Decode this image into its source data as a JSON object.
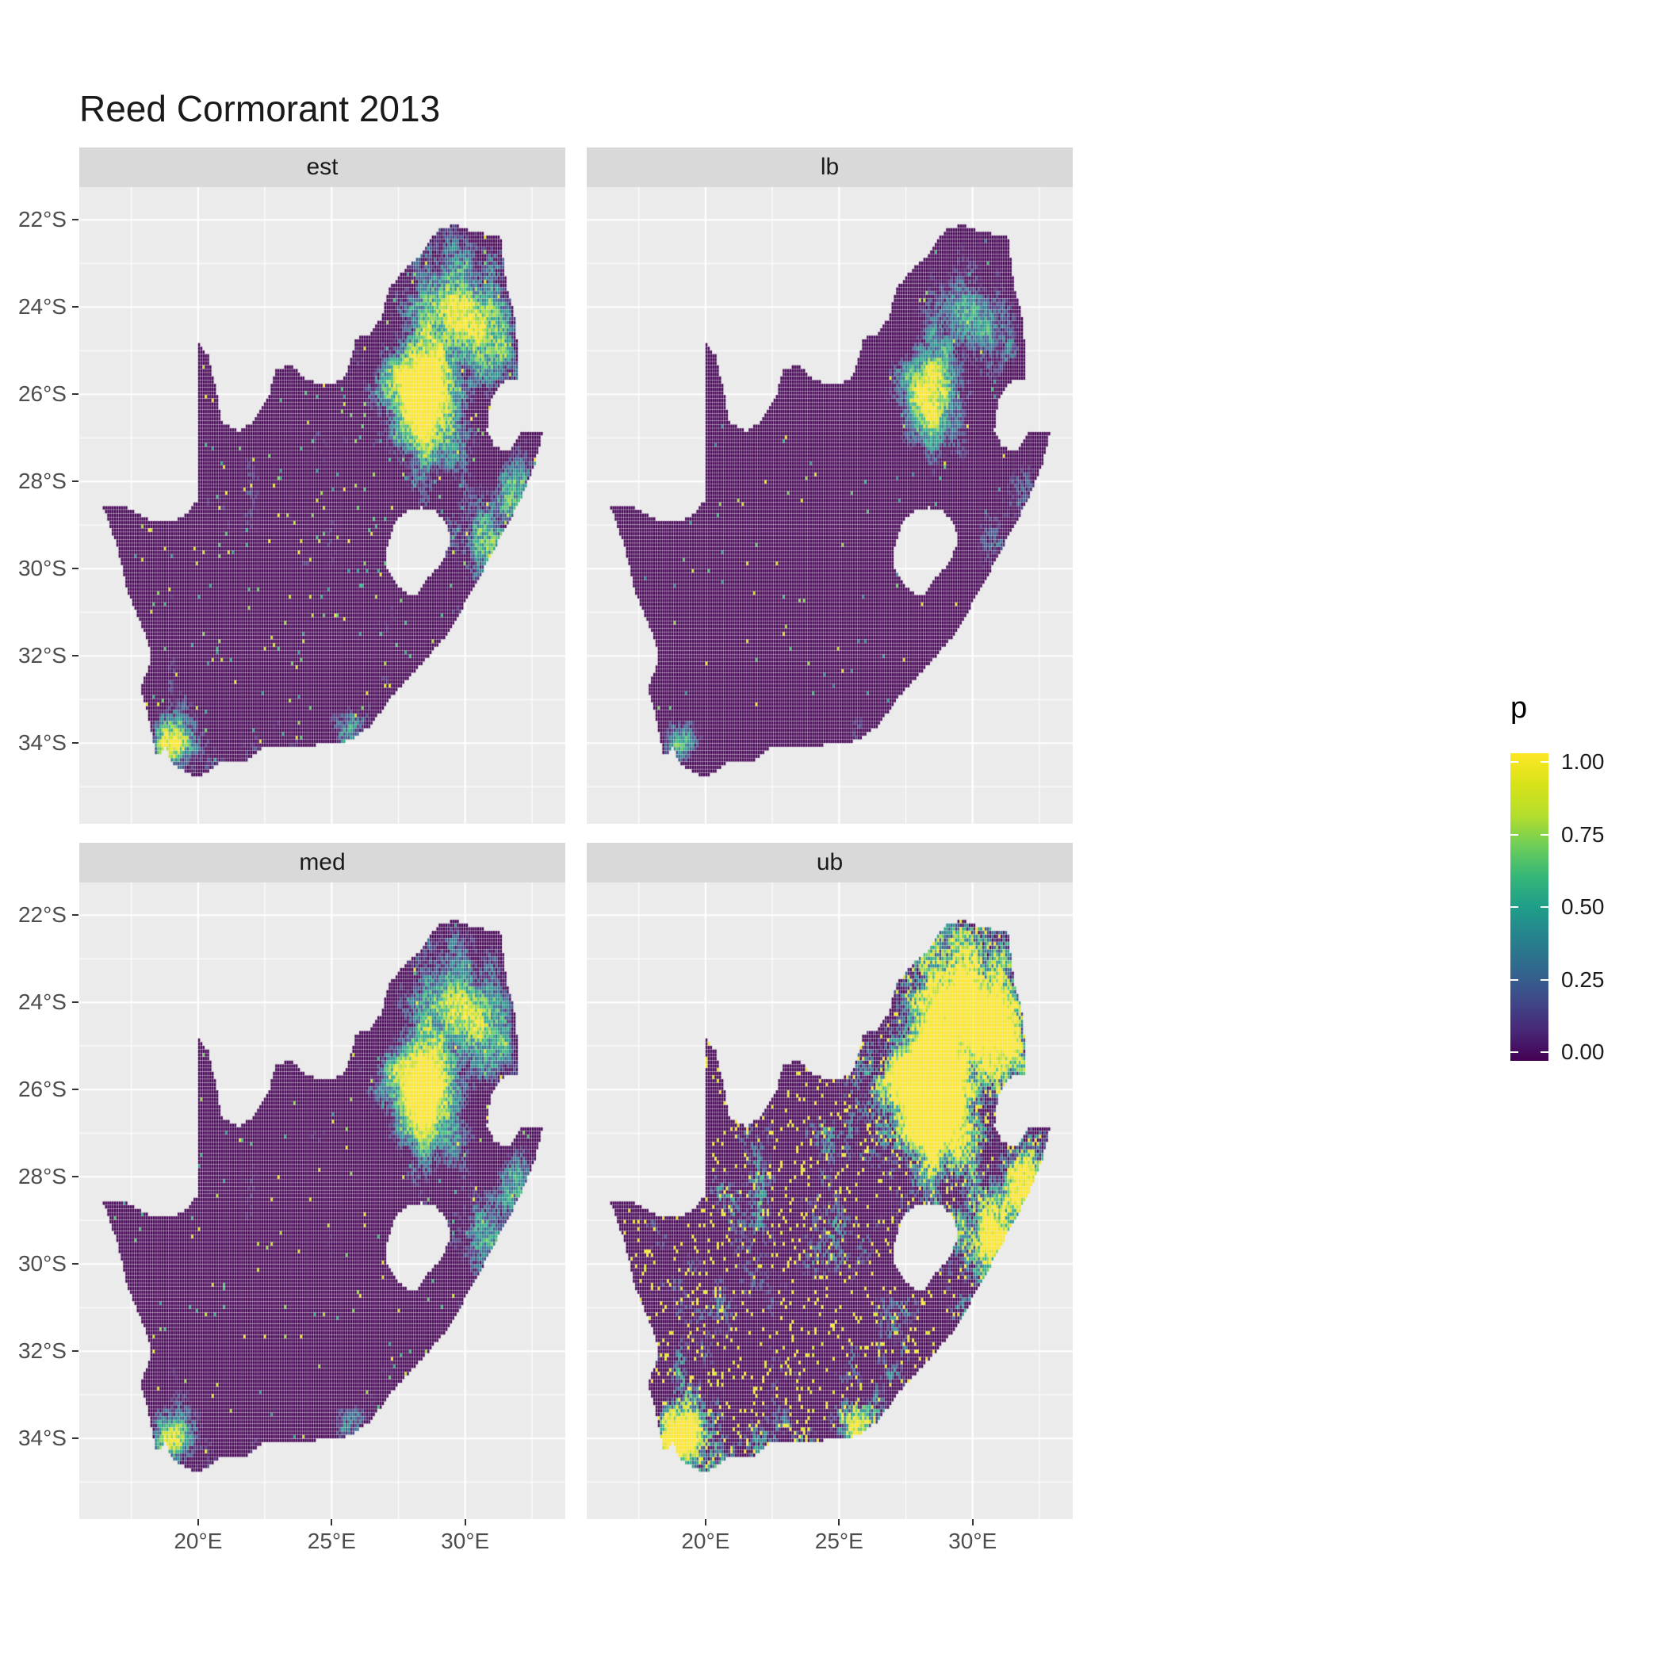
{
  "title": "Reed Cormorant 2013",
  "facets": [
    {
      "label": "est",
      "seed": 11,
      "threshold": 0.42,
      "gain": 2.6,
      "solo_prob": 0.015,
      "solo_floor": 0.45
    },
    {
      "label": "lb",
      "seed": 23,
      "threshold": 0.58,
      "gain": 2.2,
      "solo_prob": 0.006,
      "solo_floor": 0.3
    },
    {
      "label": "med",
      "seed": 37,
      "threshold": 0.45,
      "gain": 2.5,
      "solo_prob": 0.01,
      "solo_floor": 0.45
    },
    {
      "label": "ub",
      "seed": 53,
      "threshold": 0.33,
      "gain": 4.0,
      "solo_prob": 0.07,
      "solo_floor": 0.9
    }
  ],
  "axes": {
    "y_ticks": [
      {
        "label": "22°S",
        "value": -22
      },
      {
        "label": "24°S",
        "value": -24
      },
      {
        "label": "26°S",
        "value": -26
      },
      {
        "label": "28°S",
        "value": -28
      },
      {
        "label": "30°S",
        "value": -30
      },
      {
        "label": "32°S",
        "value": -32
      },
      {
        "label": "34°S",
        "value": -34
      }
    ],
    "x_ticks": [
      {
        "label": "20°E",
        "value": 20
      },
      {
        "label": "25°E",
        "value": 25
      },
      {
        "label": "30°E",
        "value": 30
      }
    ],
    "y_minor": [
      -23,
      -25,
      -27,
      -29,
      -31,
      -33,
      -35
    ],
    "x_minor": [
      17.5,
      22.5,
      27.5,
      32.5
    ]
  },
  "legend": {
    "title": "p",
    "ticks": [
      {
        "label": "1.00",
        "value": 1.0
      },
      {
        "label": "0.75",
        "value": 0.75
      },
      {
        "label": "0.50",
        "value": 0.5
      },
      {
        "label": "0.25",
        "value": 0.25
      },
      {
        "label": "0.00",
        "value": 0.0
      }
    ]
  },
  "colors": {
    "panel_bg": "#ebebeb",
    "strip_bg": "#d9d9d9",
    "grid": "#ffffff",
    "axis_text": "#4d4d4d",
    "tick_mark": "#333333",
    "viridis": [
      [
        0.0,
        "#440154"
      ],
      [
        0.1,
        "#482878"
      ],
      [
        0.2,
        "#3e4a89"
      ],
      [
        0.3,
        "#31688e"
      ],
      [
        0.4,
        "#26828e"
      ],
      [
        0.5,
        "#1f9e89"
      ],
      [
        0.6,
        "#35b779"
      ],
      [
        0.7,
        "#6ece58"
      ],
      [
        0.8,
        "#b5de2b"
      ],
      [
        0.9,
        "#d8e219"
      ],
      [
        1.0,
        "#fde725"
      ]
    ]
  },
  "chart_data": {
    "type": "heatmap",
    "title": "Reed Cormorant 2013",
    "region": "South Africa",
    "facets": [
      "est",
      "lb",
      "med",
      "ub"
    ],
    "variable": "p",
    "scale": {
      "name": "p",
      "palette": "viridis",
      "limits": [
        0,
        1
      ],
      "breaks": [
        0,
        0.25,
        0.5,
        0.75,
        1
      ],
      "break_labels": [
        "0.00",
        "0.25",
        "0.50",
        "0.75",
        "1.00"
      ]
    },
    "x_axis": {
      "label": "",
      "ticks": [
        20,
        25,
        30
      ],
      "tick_labels": [
        "20°E",
        "25°E",
        "30°E"
      ]
    },
    "y_axis": {
      "label": "",
      "ticks": [
        -22,
        -24,
        -26,
        -28,
        -30,
        -32,
        -34
      ],
      "tick_labels": [
        "22°S",
        "24°S",
        "26°S",
        "28°S",
        "30°S",
        "32°S",
        "34°S"
      ]
    },
    "map_extent": {
      "lon": [
        16.4,
        33.0
      ],
      "lat": [
        -35.0,
        -22.1
      ]
    },
    "cell_size_deg": 0.085,
    "grid": "major and minor white gridlines on grey panel",
    "legend_position": "right",
    "facet_summary": {
      "est": "estimated occupancy probability: mostly near 0 (dark purple) with teal/yellow clusters in the north-east (Gauteng/Limpopo), east coast and south-west coast",
      "lb": "lower bound: almost entirely near 0; sparse teal speckle, small green/yellow cluster around Gauteng",
      "med": "median: similar pattern to est; dark interior, bright yellow hotspot around 26°S 28°E, teal along east coast",
      "ub": "upper bound: extensive yellow (p near 1) across north-east, east coast and southern coast; heavy yellow speckle elsewhere"
    },
    "hotspots": [
      {
        "lon": 28.3,
        "lat": -26.0,
        "r": 1.15,
        "amp": 0.62
      },
      {
        "lon": 29.7,
        "lat": -23.8,
        "r": 1.7,
        "amp": 0.34
      },
      {
        "lon": 31.1,
        "lat": -24.8,
        "r": 1.1,
        "amp": 0.28
      },
      {
        "lon": 30.9,
        "lat": -29.4,
        "r": 1.1,
        "amp": 0.36
      },
      {
        "lon": 32.0,
        "lat": -27.9,
        "r": 0.9,
        "amp": 0.3
      },
      {
        "lon": 28.9,
        "lat": -27.9,
        "r": 1.3,
        "amp": 0.18
      },
      {
        "lon": 18.9,
        "lat": -34.1,
        "r": 0.65,
        "amp": 0.4
      },
      {
        "lon": 19.6,
        "lat": -33.9,
        "r": 1.2,
        "amp": 0.2
      },
      {
        "lon": 22.6,
        "lat": -34.0,
        "r": 1.2,
        "amp": 0.16
      },
      {
        "lon": 25.6,
        "lat": -33.8,
        "r": 0.7,
        "amp": 0.24
      },
      {
        "lon": 27.0,
        "lat": -26.7,
        "r": 1.6,
        "amp": 0.16
      }
    ],
    "outline": [
      [
        16.45,
        -28.6
      ],
      [
        17.05,
        -28.52
      ],
      [
        17.65,
        -28.7
      ],
      [
        18.25,
        -28.9
      ],
      [
        19.0,
        -28.93
      ],
      [
        19.6,
        -28.73
      ],
      [
        19.98,
        -28.42
      ],
      [
        19.98,
        -24.77
      ],
      [
        20.38,
        -25.12
      ],
      [
        20.68,
        -25.9
      ],
      [
        20.88,
        -26.62
      ],
      [
        21.5,
        -26.85
      ],
      [
        22.08,
        -26.63
      ],
      [
        22.62,
        -26.08
      ],
      [
        22.92,
        -25.45
      ],
      [
        23.48,
        -25.3
      ],
      [
        24.02,
        -25.65
      ],
      [
        24.72,
        -25.8
      ],
      [
        25.38,
        -25.68
      ],
      [
        25.62,
        -25.42
      ],
      [
        25.92,
        -24.72
      ],
      [
        26.42,
        -24.62
      ],
      [
        26.88,
        -24.25
      ],
      [
        27.12,
        -23.62
      ],
      [
        27.62,
        -23.2
      ],
      [
        28.22,
        -22.88
      ],
      [
        29.05,
        -22.18
      ],
      [
        29.68,
        -22.12
      ],
      [
        30.32,
        -22.28
      ],
      [
        31.32,
        -22.38
      ],
      [
        31.56,
        -23.52
      ],
      [
        31.86,
        -24.22
      ],
      [
        31.98,
        -25.02
      ],
      [
        32.02,
        -25.65
      ],
      [
        31.42,
        -25.72
      ],
      [
        30.98,
        -26.1
      ],
      [
        30.82,
        -26.82
      ],
      [
        31.12,
        -27.22
      ],
      [
        31.62,
        -27.3
      ],
      [
        31.98,
        -26.98
      ],
      [
        32.13,
        -26.85
      ],
      [
        32.9,
        -26.86
      ],
      [
        32.63,
        -27.6
      ],
      [
        32.08,
        -28.42
      ],
      [
        31.38,
        -29.22
      ],
      [
        30.6,
        -30.12
      ],
      [
        29.88,
        -30.92
      ],
      [
        29.18,
        -31.62
      ],
      [
        28.18,
        -32.32
      ],
      [
        27.28,
        -32.92
      ],
      [
        26.42,
        -33.62
      ],
      [
        25.65,
        -33.95
      ],
      [
        25.0,
        -34.0
      ],
      [
        24.2,
        -34.06
      ],
      [
        23.4,
        -34.1
      ],
      [
        22.55,
        -34.05
      ],
      [
        21.8,
        -34.42
      ],
      [
        20.9,
        -34.4
      ],
      [
        20.0,
        -34.82
      ],
      [
        19.4,
        -34.62
      ],
      [
        18.95,
        -34.4
      ],
      [
        18.8,
        -34.08
      ],
      [
        18.45,
        -34.33
      ],
      [
        18.32,
        -33.92
      ],
      [
        18.05,
        -33.15
      ],
      [
        17.86,
        -32.75
      ],
      [
        18.26,
        -32.05
      ],
      [
        18.1,
        -31.62
      ],
      [
        17.35,
        -30.5
      ],
      [
        16.95,
        -29.45
      ]
    ],
    "lesotho_hole": [
      [
        27.05,
        -29.6
      ],
      [
        27.35,
        -28.95
      ],
      [
        27.75,
        -28.7
      ],
      [
        28.35,
        -28.6
      ],
      [
        28.95,
        -28.7
      ],
      [
        29.35,
        -29.05
      ],
      [
        29.45,
        -29.35
      ],
      [
        29.15,
        -29.85
      ],
      [
        28.7,
        -30.15
      ],
      [
        28.15,
        -30.6
      ],
      [
        27.7,
        -30.55
      ],
      [
        27.35,
        -30.25
      ],
      [
        27.0,
        -29.95
      ]
    ]
  }
}
